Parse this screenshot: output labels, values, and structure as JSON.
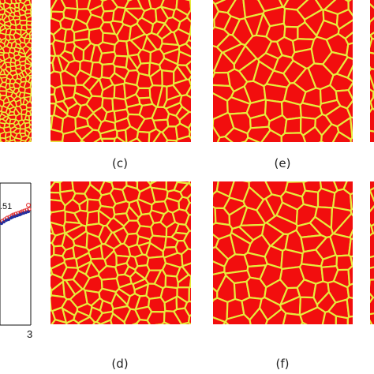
{
  "captions": {
    "c": "(c)",
    "d": "(d)",
    "e": "(e)",
    "f": "(f)"
  },
  "plot": {
    "annotation": ".51",
    "tick_label": "3"
  },
  "colors": {
    "grain": "#f20e0e",
    "boundary": "#e6ec3c",
    "marker_red": "#e02020",
    "marker_blue": "#2030a0"
  }
}
